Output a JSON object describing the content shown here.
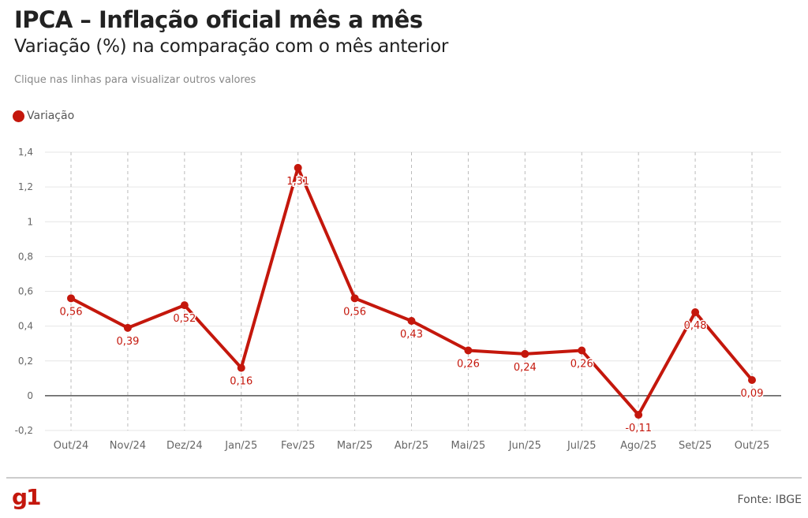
{
  "header": {
    "title": "IPCA – Inflação oficial mês a mês",
    "subtitle": "Variação (%) na comparação com o mês anterior",
    "note": "Clique nas linhas para visualizar outros valores"
  },
  "footer": {
    "logo": "g1",
    "source": "Fonte: IBGE"
  },
  "colors": {
    "series": "#c4170c",
    "grid": "#e6e6e6",
    "zero": "#555555"
  },
  "chart_data": {
    "type": "line",
    "categories": [
      "Out/24",
      "Nov/24",
      "Dez/24",
      "Jan/25",
      "Fev/25",
      "Mar/25",
      "Abr/25",
      "Mai/25",
      "Jun/25",
      "Jul/25",
      "Ago/25",
      "Set/25",
      "Out/25"
    ],
    "series": [
      {
        "name": "Variação",
        "values": [
          0.56,
          0.39,
          0.52,
          0.16,
          1.31,
          0.56,
          0.43,
          0.26,
          0.24,
          0.26,
          -0.11,
          0.48,
          0.09
        ],
        "labels": [
          "0,56",
          "0,39",
          "0,52",
          "0,16",
          "1,31",
          "0,56",
          "0,43",
          "0,26",
          "0,24",
          "0,26",
          "-0,11",
          "0,48",
          "0,09"
        ]
      }
    ],
    "ylim": [
      -0.2,
      1.4
    ],
    "yticks": [
      -0.2,
      0,
      0.2,
      0.4,
      0.6,
      0.8,
      1,
      1.2,
      1.4
    ],
    "ytick_labels": [
      "-0,2",
      "0",
      "0,2",
      "0,4",
      "0,6",
      "0,8",
      "1",
      "1,2",
      "1,4"
    ],
    "grid": true,
    "legend": "top-left"
  }
}
